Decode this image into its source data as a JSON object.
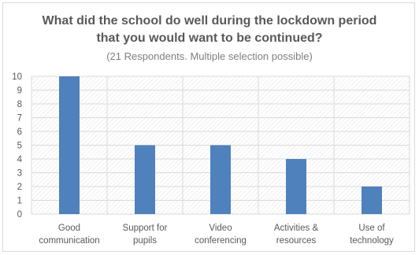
{
  "chart_data": {
    "type": "bar",
    "title_lines": [
      "What did the school do well during the lockdown period",
      "that you would want to be continued?"
    ],
    "subtitle": "(21 Respondents. Multiple selection possible)",
    "categories": [
      [
        "Good",
        "communication"
      ],
      [
        "Support for",
        "pupils"
      ],
      [
        "Video",
        "conferencing"
      ],
      [
        "Activities &",
        "resources"
      ],
      [
        "Use of",
        "technology"
      ]
    ],
    "values": [
      10,
      5,
      5,
      4,
      2
    ],
    "ylim": [
      0,
      10
    ],
    "yticks": [
      "0",
      "1",
      "2",
      "3",
      "4",
      "5",
      "6",
      "7",
      "8",
      "9",
      "10"
    ],
    "grid": true,
    "bar_color": "#4f81bd"
  }
}
